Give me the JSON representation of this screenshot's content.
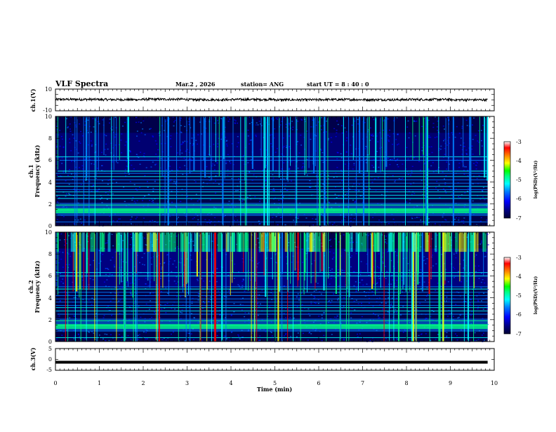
{
  "header": {
    "title": "VLF Spectra",
    "date": "Mar.2 , 2026",
    "station": "station= ANG",
    "start_ut": "start UT =  8 : 40 : 0"
  },
  "colors": {
    "spectrogram_background": "#00004a",
    "waveform": "#000000",
    "colormap": [
      "#000033",
      "#00007f",
      "#0000ff",
      "#0080ff",
      "#00ffff",
      "#00ff80",
      "#00ff00",
      "#ffff00",
      "#ff8000",
      "#ff0000",
      "#ffffff"
    ]
  },
  "chart_data": [
    {
      "type": "line",
      "name": "ch.1 waveform",
      "ylabel": "ch.1(V)",
      "ylim": [
        -10,
        10
      ],
      "yticks": [
        "10",
        "-10"
      ],
      "xlim": [
        0,
        10
      ],
      "x": [
        0,
        1,
        2,
        3,
        4,
        5,
        6,
        7,
        8,
        9,
        9.85
      ],
      "values": [
        0.5,
        0.3,
        0.6,
        0.2,
        0.4,
        0.1,
        0.3,
        0.2,
        0.4,
        0.1,
        0.3
      ]
    },
    {
      "type": "heatmap",
      "name": "ch.1 spectrogram",
      "ylabel_channel": "ch.1",
      "ylabel": "Frequency (kHz)",
      "ylim": [
        0,
        10
      ],
      "yticks": [
        "0",
        "2",
        "4",
        "6",
        "8",
        "10"
      ],
      "xlim": [
        0,
        10
      ],
      "data_extent_min": 9.85,
      "colorbar": {
        "label": "log(PSD)(V²/Hz)",
        "range": [
          -7,
          -3
        ],
        "ticks": [
          "-3",
          "-4",
          "-5",
          "-6",
          "-7"
        ]
      }
    },
    {
      "type": "heatmap",
      "name": "ch.2 spectrogram",
      "ylabel_channel": "ch.2",
      "ylabel": "Frequency (kHz)",
      "ylim": [
        0,
        10
      ],
      "yticks": [
        "0",
        "2",
        "4",
        "6",
        "8",
        "10"
      ],
      "xlim": [
        0,
        10
      ],
      "data_extent_min": 9.85,
      "colorbar": {
        "label": "log(PSD)(V²/Hz)",
        "range": [
          -7,
          -3
        ],
        "ticks": [
          "-3",
          "-4",
          "-5",
          "-6",
          "-7"
        ]
      }
    },
    {
      "type": "line",
      "name": "ch.3 waveform",
      "ylabel": "ch.3(V)",
      "ylim": [
        -5,
        5
      ],
      "yticks": [
        "5",
        "0",
        "-5"
      ],
      "xlim": [
        0,
        10
      ],
      "x": [
        0,
        9.85
      ],
      "values": [
        -1.3,
        -1.3
      ]
    }
  ],
  "x_axis": {
    "label": "Time (min)",
    "ticks": [
      "0",
      "1",
      "2",
      "3",
      "4",
      "5",
      "6",
      "7",
      "8",
      "9",
      "10"
    ]
  }
}
